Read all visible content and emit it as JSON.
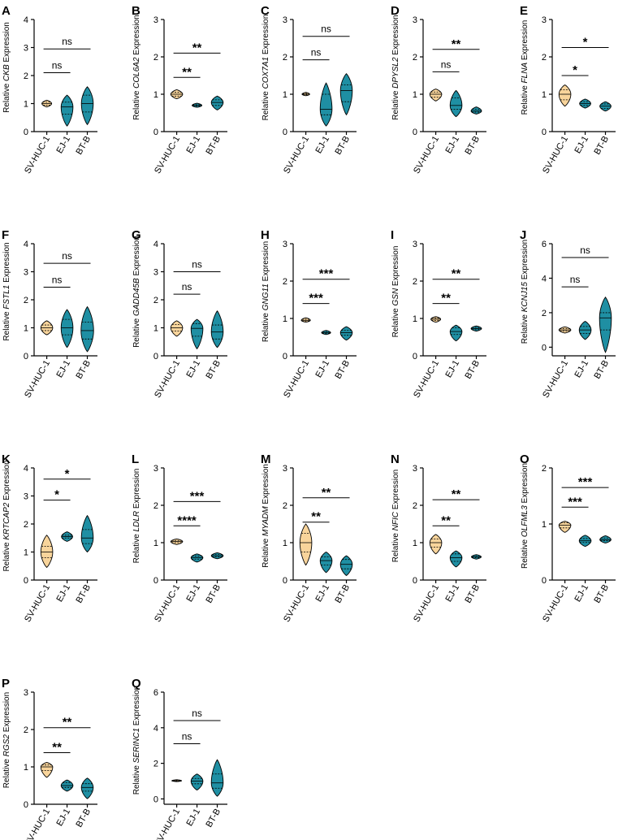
{
  "colors": {
    "group1": "#f8d49b",
    "group2": "#1f8fa3",
    "stroke": "#000000"
  },
  "categories": [
    "SV-HUC-1",
    "EJ-1",
    "BT-B"
  ],
  "ylabel_prefix": "Relative",
  "ylabel_suffix": "Expression",
  "chart_data": [
    {
      "type": "violin",
      "panel": "A",
      "gene": "CKB",
      "ylim": [
        0,
        4
      ],
      "yticks": [
        0,
        1,
        2,
        3,
        4
      ],
      "categories": [
        "SV-HUC-1",
        "EJ-1",
        "BT-B"
      ],
      "series": [
        {
          "name": "SV-HUC-1",
          "median": 1.0,
          "q1": 0.94,
          "q3": 1.05,
          "min": 0.88,
          "max": 1.12,
          "maxWidth": 0.7
        },
        {
          "name": "EJ-1",
          "median": 0.88,
          "q1": 0.62,
          "q3": 1.05,
          "min": 0.2,
          "max": 1.3,
          "maxWidth": 0.85
        },
        {
          "name": "BT-B",
          "median": 1.0,
          "q1": 0.7,
          "q3": 1.3,
          "min": 0.25,
          "max": 1.6,
          "maxWidth": 0.85
        }
      ],
      "significance": [
        {
          "from": 0,
          "to": 1,
          "y": 2.1,
          "label": "ns"
        },
        {
          "from": 0,
          "to": 2,
          "y": 2.95,
          "label": "ns"
        }
      ]
    },
    {
      "type": "violin",
      "panel": "B",
      "gene": "COL6A2",
      "ylim": [
        0,
        3
      ],
      "yticks": [
        0,
        1,
        2,
        3
      ],
      "categories": [
        "SV-HUC-1",
        "EJ-1",
        "BT-B"
      ],
      "series": [
        {
          "name": "SV-HUC-1",
          "median": 1.0,
          "q1": 0.95,
          "q3": 1.05,
          "min": 0.88,
          "max": 1.12,
          "maxWidth": 0.85
        },
        {
          "name": "EJ-1",
          "median": 0.7,
          "q1": 0.68,
          "q3": 0.72,
          "min": 0.65,
          "max": 0.76,
          "maxWidth": 0.7
        },
        {
          "name": "BT-B",
          "median": 0.78,
          "q1": 0.7,
          "q3": 0.85,
          "min": 0.58,
          "max": 0.95,
          "maxWidth": 0.85
        }
      ],
      "significance": [
        {
          "from": 0,
          "to": 1,
          "y": 1.45,
          "label": "**"
        },
        {
          "from": 0,
          "to": 2,
          "y": 2.1,
          "label": "**"
        }
      ]
    },
    {
      "type": "violin",
      "panel": "C",
      "gene": "COX7A1",
      "ylim": [
        0,
        3
      ],
      "yticks": [
        0,
        1,
        2,
        3
      ],
      "categories": [
        "SV-HUC-1",
        "EJ-1",
        "BT-B"
      ],
      "series": [
        {
          "name": "SV-HUC-1",
          "median": 1.0,
          "q1": 0.98,
          "q3": 1.02,
          "min": 0.96,
          "max": 1.05,
          "maxWidth": 0.55
        },
        {
          "name": "EJ-1",
          "median": 0.6,
          "q1": 0.45,
          "q3": 1.0,
          "min": 0.15,
          "max": 1.3,
          "maxWidth": 0.85
        },
        {
          "name": "BT-B",
          "median": 1.1,
          "q1": 0.8,
          "q3": 1.25,
          "min": 0.45,
          "max": 1.55,
          "maxWidth": 0.85
        }
      ],
      "significance": [
        {
          "from": 0,
          "to": 1,
          "y": 1.92,
          "label": "ns"
        },
        {
          "from": 0,
          "to": 2,
          "y": 2.55,
          "label": "ns"
        }
      ]
    },
    {
      "type": "violin",
      "panel": "D",
      "gene": "DPYSL2",
      "ylim": [
        0,
        3
      ],
      "yticks": [
        0,
        1,
        2,
        3
      ],
      "categories": [
        "SV-HUC-1",
        "EJ-1",
        "BT-B"
      ],
      "series": [
        {
          "name": "SV-HUC-1",
          "median": 1.0,
          "q1": 0.92,
          "q3": 1.06,
          "min": 0.82,
          "max": 1.14,
          "maxWidth": 0.85
        },
        {
          "name": "EJ-1",
          "median": 0.7,
          "q1": 0.6,
          "q3": 0.9,
          "min": 0.4,
          "max": 1.1,
          "maxWidth": 0.85
        },
        {
          "name": "BT-B",
          "median": 0.55,
          "q1": 0.52,
          "q3": 0.6,
          "min": 0.47,
          "max": 0.66,
          "maxWidth": 0.75
        }
      ],
      "significance": [
        {
          "from": 0,
          "to": 1,
          "y": 1.6,
          "label": "ns"
        },
        {
          "from": 0,
          "to": 2,
          "y": 2.2,
          "label": "**"
        }
      ]
    },
    {
      "type": "violin",
      "panel": "E",
      "gene": "FLNA",
      "ylim": [
        0,
        3
      ],
      "yticks": [
        0,
        1,
        2,
        3
      ],
      "categories": [
        "SV-HUC-1",
        "EJ-1",
        "BT-B"
      ],
      "series": [
        {
          "name": "SV-HUC-1",
          "median": 1.0,
          "q1": 0.85,
          "q3": 1.12,
          "min": 0.68,
          "max": 1.25,
          "maxWidth": 0.85
        },
        {
          "name": "EJ-1",
          "median": 0.75,
          "q1": 0.7,
          "q3": 0.8,
          "min": 0.63,
          "max": 0.87,
          "maxWidth": 0.8
        },
        {
          "name": "BT-B",
          "median": 0.68,
          "q1": 0.62,
          "q3": 0.74,
          "min": 0.55,
          "max": 0.8,
          "maxWidth": 0.8
        }
      ],
      "significance": [
        {
          "from": 0,
          "to": 1,
          "y": 1.5,
          "label": "*"
        },
        {
          "from": 0,
          "to": 2,
          "y": 2.25,
          "label": "*"
        }
      ]
    },
    {
      "type": "violin",
      "panel": "F",
      "gene": "FSTL1",
      "ylim": [
        0,
        4
      ],
      "yticks": [
        0,
        1,
        2,
        3,
        4
      ],
      "categories": [
        "SV-HUC-1",
        "EJ-1",
        "BT-B"
      ],
      "series": [
        {
          "name": "SV-HUC-1",
          "median": 1.0,
          "q1": 0.9,
          "q3": 1.1,
          "min": 0.75,
          "max": 1.25,
          "maxWidth": 0.85
        },
        {
          "name": "EJ-1",
          "median": 1.0,
          "q1": 0.75,
          "q3": 1.3,
          "min": 0.3,
          "max": 1.65,
          "maxWidth": 0.85
        },
        {
          "name": "BT-B",
          "median": 0.9,
          "q1": 0.6,
          "q3": 1.2,
          "min": 0.15,
          "max": 1.75,
          "maxWidth": 0.9
        }
      ],
      "significance": [
        {
          "from": 0,
          "to": 1,
          "y": 2.45,
          "label": "ns"
        },
        {
          "from": 0,
          "to": 2,
          "y": 3.3,
          "label": "ns"
        }
      ]
    },
    {
      "type": "violin",
      "panel": "G",
      "gene": "GADD45B",
      "ylim": [
        0,
        4
      ],
      "yticks": [
        0,
        1,
        2,
        3,
        4
      ],
      "categories": [
        "SV-HUC-1",
        "EJ-1",
        "BT-B"
      ],
      "series": [
        {
          "name": "SV-HUC-1",
          "median": 1.0,
          "q1": 0.88,
          "q3": 1.12,
          "min": 0.7,
          "max": 1.25,
          "maxWidth": 0.85
        },
        {
          "name": "EJ-1",
          "median": 0.98,
          "q1": 0.7,
          "q3": 1.15,
          "min": 0.25,
          "max": 1.3,
          "maxWidth": 0.85
        },
        {
          "name": "BT-B",
          "median": 0.85,
          "q1": 0.6,
          "q3": 1.1,
          "min": 0.3,
          "max": 1.6,
          "maxWidth": 0.85
        }
      ],
      "significance": [
        {
          "from": 0,
          "to": 1,
          "y": 2.2,
          "label": "ns"
        },
        {
          "from": 0,
          "to": 2,
          "y": 3.0,
          "label": "ns"
        }
      ]
    },
    {
      "type": "violin",
      "panel": "H",
      "gene": "GNG11",
      "ylim": [
        0,
        3
      ],
      "yticks": [
        0,
        1,
        2,
        3
      ],
      "categories": [
        "SV-HUC-1",
        "EJ-1",
        "BT-B"
      ],
      "series": [
        {
          "name": "SV-HUC-1",
          "median": 0.95,
          "q1": 0.93,
          "q3": 0.98,
          "min": 0.9,
          "max": 1.02,
          "maxWidth": 0.65
        },
        {
          "name": "EJ-1",
          "median": 0.62,
          "q1": 0.6,
          "q3": 0.65,
          "min": 0.57,
          "max": 0.68,
          "maxWidth": 0.65
        },
        {
          "name": "BT-B",
          "median": 0.62,
          "q1": 0.55,
          "q3": 0.68,
          "min": 0.42,
          "max": 0.78,
          "maxWidth": 0.85
        }
      ],
      "significance": [
        {
          "from": 0,
          "to": 1,
          "y": 1.4,
          "label": "***"
        },
        {
          "from": 0,
          "to": 2,
          "y": 2.05,
          "label": "***"
        }
      ]
    },
    {
      "type": "violin",
      "panel": "I",
      "gene": "GSN",
      "ylim": [
        0,
        3
      ],
      "yticks": [
        0,
        1,
        2,
        3
      ],
      "categories": [
        "SV-HUC-1",
        "EJ-1",
        "BT-B"
      ],
      "series": [
        {
          "name": "SV-HUC-1",
          "median": 0.98,
          "q1": 0.95,
          "q3": 1.01,
          "min": 0.9,
          "max": 1.05,
          "maxWidth": 0.7
        },
        {
          "name": "EJ-1",
          "median": 0.65,
          "q1": 0.57,
          "q3": 0.75,
          "min": 0.4,
          "max": 0.82,
          "maxWidth": 0.85
        },
        {
          "name": "BT-B",
          "median": 0.73,
          "q1": 0.7,
          "q3": 0.76,
          "min": 0.66,
          "max": 0.8,
          "maxWidth": 0.75
        }
      ],
      "significance": [
        {
          "from": 0,
          "to": 1,
          "y": 1.4,
          "label": "**"
        },
        {
          "from": 0,
          "to": 2,
          "y": 2.05,
          "label": "**"
        }
      ]
    },
    {
      "type": "violin",
      "panel": "J",
      "gene": "KCNJ15",
      "ylim": [
        -0.5,
        6
      ],
      "yticks": [
        0,
        2,
        4,
        6
      ],
      "categories": [
        "SV-HUC-1",
        "EJ-1",
        "BT-B"
      ],
      "series": [
        {
          "name": "SV-HUC-1",
          "median": 1.0,
          "q1": 0.93,
          "q3": 1.07,
          "min": 0.82,
          "max": 1.18,
          "maxWidth": 0.85
        },
        {
          "name": "EJ-1",
          "median": 1.0,
          "q1": 0.8,
          "q3": 1.2,
          "min": 0.45,
          "max": 1.5,
          "maxWidth": 0.85
        },
        {
          "name": "BT-B",
          "median": 1.7,
          "q1": 1.0,
          "q3": 2.0,
          "min": -0.3,
          "max": 2.9,
          "maxWidth": 0.85
        }
      ],
      "significance": [
        {
          "from": 0,
          "to": 1,
          "y": 3.5,
          "label": "ns"
        },
        {
          "from": 0,
          "to": 2,
          "y": 5.2,
          "label": "ns"
        }
      ]
    },
    {
      "type": "violin",
      "panel": "K",
      "gene": "KRTCAP2",
      "ylim": [
        0,
        4
      ],
      "yticks": [
        0,
        1,
        2,
        3,
        4
      ],
      "categories": [
        "SV-HUC-1",
        "EJ-1",
        "BT-B"
      ],
      "series": [
        {
          "name": "SV-HUC-1",
          "median": 1.0,
          "q1": 0.8,
          "q3": 1.2,
          "min": 0.45,
          "max": 1.6,
          "maxWidth": 0.85
        },
        {
          "name": "EJ-1",
          "median": 1.55,
          "q1": 1.5,
          "q3": 1.6,
          "min": 1.38,
          "max": 1.72,
          "maxWidth": 0.8
        },
        {
          "name": "BT-B",
          "median": 1.5,
          "q1": 1.3,
          "q3": 1.8,
          "min": 1.0,
          "max": 2.3,
          "maxWidth": 0.85
        }
      ],
      "significance": [
        {
          "from": 0,
          "to": 1,
          "y": 2.85,
          "label": "*"
        },
        {
          "from": 0,
          "to": 2,
          "y": 3.6,
          "label": "*"
        }
      ]
    },
    {
      "type": "violin",
      "panel": "L",
      "gene": "LDLR",
      "ylim": [
        0,
        3
      ],
      "yticks": [
        0,
        1,
        2,
        3
      ],
      "categories": [
        "SV-HUC-1",
        "EJ-1",
        "BT-B"
      ],
      "series": [
        {
          "name": "SV-HUC-1",
          "median": 1.03,
          "q1": 1.0,
          "q3": 1.06,
          "min": 0.95,
          "max": 1.1,
          "maxWidth": 0.85
        },
        {
          "name": "EJ-1",
          "median": 0.6,
          "q1": 0.56,
          "q3": 0.64,
          "min": 0.48,
          "max": 0.7,
          "maxWidth": 0.85
        },
        {
          "name": "BT-B",
          "median": 0.65,
          "q1": 0.62,
          "q3": 0.68,
          "min": 0.57,
          "max": 0.73,
          "maxWidth": 0.85
        }
      ],
      "significance": [
        {
          "from": 0,
          "to": 1,
          "y": 1.45,
          "label": "****"
        },
        {
          "from": 0,
          "to": 2,
          "y": 2.1,
          "label": "***"
        }
      ]
    },
    {
      "type": "violin",
      "panel": "M",
      "gene": "MYADM",
      "ylim": [
        0,
        3
      ],
      "yticks": [
        0,
        1,
        2,
        3
      ],
      "categories": [
        "SV-HUC-1",
        "EJ-1",
        "BT-B"
      ],
      "series": [
        {
          "name": "SV-HUC-1",
          "median": 1.0,
          "q1": 0.75,
          "q3": 1.25,
          "min": 0.4,
          "max": 1.5,
          "maxWidth": 0.85
        },
        {
          "name": "EJ-1",
          "median": 0.52,
          "q1": 0.4,
          "q3": 0.62,
          "min": 0.2,
          "max": 0.75,
          "maxWidth": 0.85
        },
        {
          "name": "BT-B",
          "median": 0.42,
          "q1": 0.3,
          "q3": 0.55,
          "min": 0.12,
          "max": 0.65,
          "maxWidth": 0.85
        }
      ],
      "significance": [
        {
          "from": 0,
          "to": 1,
          "y": 1.55,
          "label": "**"
        },
        {
          "from": 0,
          "to": 2,
          "y": 2.2,
          "label": "**"
        }
      ]
    },
    {
      "type": "violin",
      "panel": "N",
      "gene": "NFIC",
      "ylim": [
        0,
        3
      ],
      "yticks": [
        0,
        1,
        2,
        3
      ],
      "categories": [
        "SV-HUC-1",
        "EJ-1",
        "BT-B"
      ],
      "series": [
        {
          "name": "SV-HUC-1",
          "median": 1.0,
          "q1": 0.88,
          "q3": 1.1,
          "min": 0.7,
          "max": 1.22,
          "maxWidth": 0.85
        },
        {
          "name": "EJ-1",
          "median": 0.6,
          "q1": 0.5,
          "q3": 0.7,
          "min": 0.35,
          "max": 0.78,
          "maxWidth": 0.85
        },
        {
          "name": "BT-B",
          "median": 0.62,
          "q1": 0.6,
          "q3": 0.65,
          "min": 0.56,
          "max": 0.68,
          "maxWidth": 0.7
        }
      ],
      "significance": [
        {
          "from": 0,
          "to": 1,
          "y": 1.45,
          "label": "**"
        },
        {
          "from": 0,
          "to": 2,
          "y": 2.15,
          "label": "**"
        }
      ]
    },
    {
      "type": "violin",
      "panel": "O",
      "gene": "OLFML3",
      "ylim": [
        0,
        2
      ],
      "yticks": [
        0,
        1,
        2
      ],
      "categories": [
        "SV-HUC-1",
        "EJ-1",
        "BT-B"
      ],
      "series": [
        {
          "name": "SV-HUC-1",
          "median": 0.98,
          "q1": 0.93,
          "q3": 1.02,
          "min": 0.85,
          "max": 1.05,
          "maxWidth": 0.85
        },
        {
          "name": "EJ-1",
          "median": 0.7,
          "q1": 0.67,
          "q3": 0.74,
          "min": 0.6,
          "max": 0.8,
          "maxWidth": 0.85
        },
        {
          "name": "BT-B",
          "median": 0.72,
          "q1": 0.7,
          "q3": 0.75,
          "min": 0.66,
          "max": 0.79,
          "maxWidth": 0.8
        }
      ],
      "significance": [
        {
          "from": 0,
          "to": 1,
          "y": 1.3,
          "label": "***"
        },
        {
          "from": 0,
          "to": 2,
          "y": 1.65,
          "label": "***"
        }
      ]
    },
    {
      "type": "violin",
      "panel": "P",
      "gene": "RGS2",
      "ylim": [
        0,
        3
      ],
      "yticks": [
        0,
        1,
        2,
        3
      ],
      "categories": [
        "SV-HUC-1",
        "EJ-1",
        "BT-B"
      ],
      "series": [
        {
          "name": "SV-HUC-1",
          "median": 1.0,
          "q1": 0.9,
          "q3": 1.05,
          "min": 0.72,
          "max": 1.12,
          "maxWidth": 0.85
        },
        {
          "name": "EJ-1",
          "median": 0.5,
          "q1": 0.45,
          "q3": 0.58,
          "min": 0.35,
          "max": 0.65,
          "maxWidth": 0.85
        },
        {
          "name": "BT-B",
          "median": 0.45,
          "q1": 0.35,
          "q3": 0.55,
          "min": 0.15,
          "max": 0.7,
          "maxWidth": 0.85
        }
      ],
      "significance": [
        {
          "from": 0,
          "to": 1,
          "y": 1.38,
          "label": "**"
        },
        {
          "from": 0,
          "to": 2,
          "y": 2.05,
          "label": "**"
        }
      ]
    },
    {
      "type": "violin",
      "panel": "Q",
      "gene": "SERINC1",
      "ylim": [
        -0.3,
        6
      ],
      "yticks": [
        0,
        2,
        4,
        6
      ],
      "categories": [
        "SV-HUC-1",
        "EJ-1",
        "BT-B"
      ],
      "series": [
        {
          "name": "SV-HUC-1",
          "median": 1.02,
          "q1": 1.0,
          "q3": 1.05,
          "min": 0.97,
          "max": 1.08,
          "maxWidth": 0.7
        },
        {
          "name": "EJ-1",
          "median": 1.0,
          "q1": 0.85,
          "q3": 1.15,
          "min": 0.5,
          "max": 1.4,
          "maxWidth": 0.85
        },
        {
          "name": "BT-B",
          "median": 0.9,
          "q1": 0.6,
          "q3": 1.4,
          "min": 0.15,
          "max": 2.2,
          "maxWidth": 0.85
        }
      ],
      "significance": [
        {
          "from": 0,
          "to": 1,
          "y": 3.1,
          "label": "ns"
        },
        {
          "from": 0,
          "to": 2,
          "y": 4.4,
          "label": "ns"
        }
      ]
    }
  ]
}
